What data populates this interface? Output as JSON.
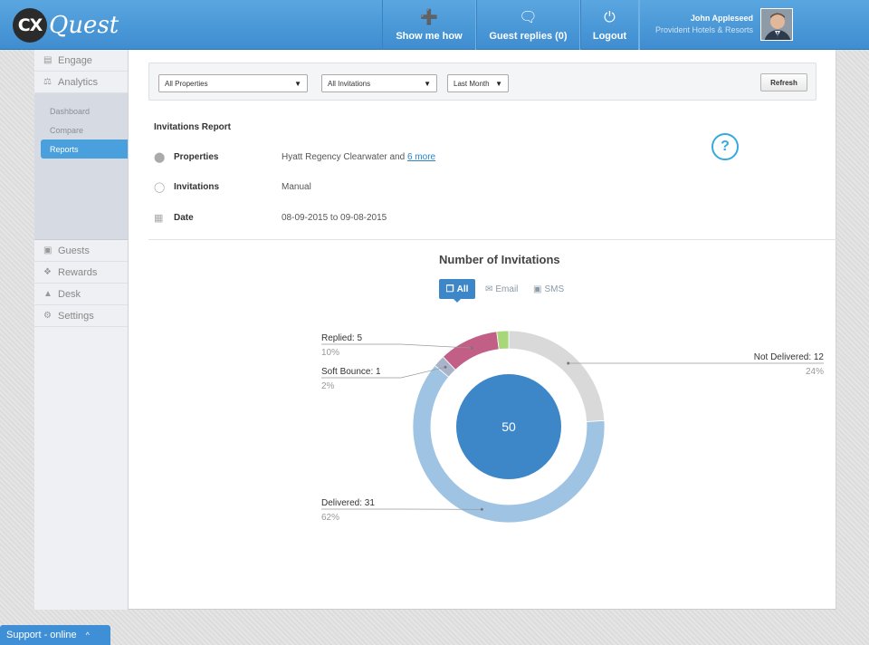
{
  "header": {
    "logo_cx": "CX",
    "logo_quest": "Quest",
    "nav": [
      {
        "label": "Show me how",
        "icon": "help-box-icon"
      },
      {
        "label": "Guest replies (0)",
        "icon": "chat-bubble-icon"
      },
      {
        "label": "Logout",
        "icon": "power-icon"
      }
    ],
    "user": {
      "name": "John Appleseed",
      "org": "Provident Hotels & Resorts"
    }
  },
  "sidebar": {
    "top_items": [
      {
        "label": "Engage",
        "icon": "engage-icon"
      },
      {
        "label": "Analytics",
        "icon": "analytics-icon"
      }
    ],
    "sub_items": [
      {
        "label": "Dashboard"
      },
      {
        "label": "Compare"
      },
      {
        "label": "Reports",
        "active": true
      }
    ],
    "bottom_items": [
      {
        "label": "Guests",
        "icon": "guests-icon"
      },
      {
        "label": "Rewards",
        "icon": "rewards-icon"
      },
      {
        "label": "Desk",
        "icon": "desk-icon"
      },
      {
        "label": "Settings",
        "icon": "settings-icon"
      }
    ]
  },
  "filters": {
    "properties": "All Properties",
    "invitations": "All Invitations",
    "period": "Last Month",
    "refresh_label": "Refresh"
  },
  "report": {
    "title": "Invitations Report",
    "help_symbol": "?",
    "rows": [
      {
        "label": "Properties",
        "value": "Hyatt Regency Clearwater and ",
        "link": "6 more",
        "icon": "map-pin-icon"
      },
      {
        "label": "Invitations",
        "value": "Manual",
        "icon": "speech-bubble-icon"
      },
      {
        "label": "Date",
        "value": "08-09-2015 to 09-08-2015",
        "icon": "calendar-icon"
      }
    ]
  },
  "chart_tabs": [
    {
      "label": "All",
      "active": true
    },
    {
      "label": "Email"
    },
    {
      "label": "SMS"
    }
  ],
  "chart_data": {
    "type": "pie",
    "title": "Number of Invitations",
    "total": 50,
    "slices": [
      {
        "name": "Not Delivered",
        "value": 12,
        "percent": "24%",
        "color": "#d9d9d9"
      },
      {
        "name": "Delivered",
        "value": 31,
        "percent": "62%",
        "color": "#9fc3e2"
      },
      {
        "name": "Soft Bounce",
        "value": 1,
        "percent": "2%",
        "color": "#a9b3c9"
      },
      {
        "name": "Replied",
        "value": 5,
        "percent": "10%",
        "color": "#c25f86"
      },
      {
        "name": "",
        "value": 1,
        "percent": "",
        "color": "#a8d67a"
      }
    ],
    "labels": [
      {
        "text": "Not Delivered: 12",
        "pct": "24%"
      },
      {
        "text": "Delivered: 31",
        "pct": "62%"
      },
      {
        "text": "Soft Bounce: 1",
        "pct": "2%"
      },
      {
        "text": "Replied: 5",
        "pct": "10%"
      }
    ],
    "center_color": "#3d87c9"
  },
  "support": {
    "label": "Support - online",
    "caret": "^"
  }
}
